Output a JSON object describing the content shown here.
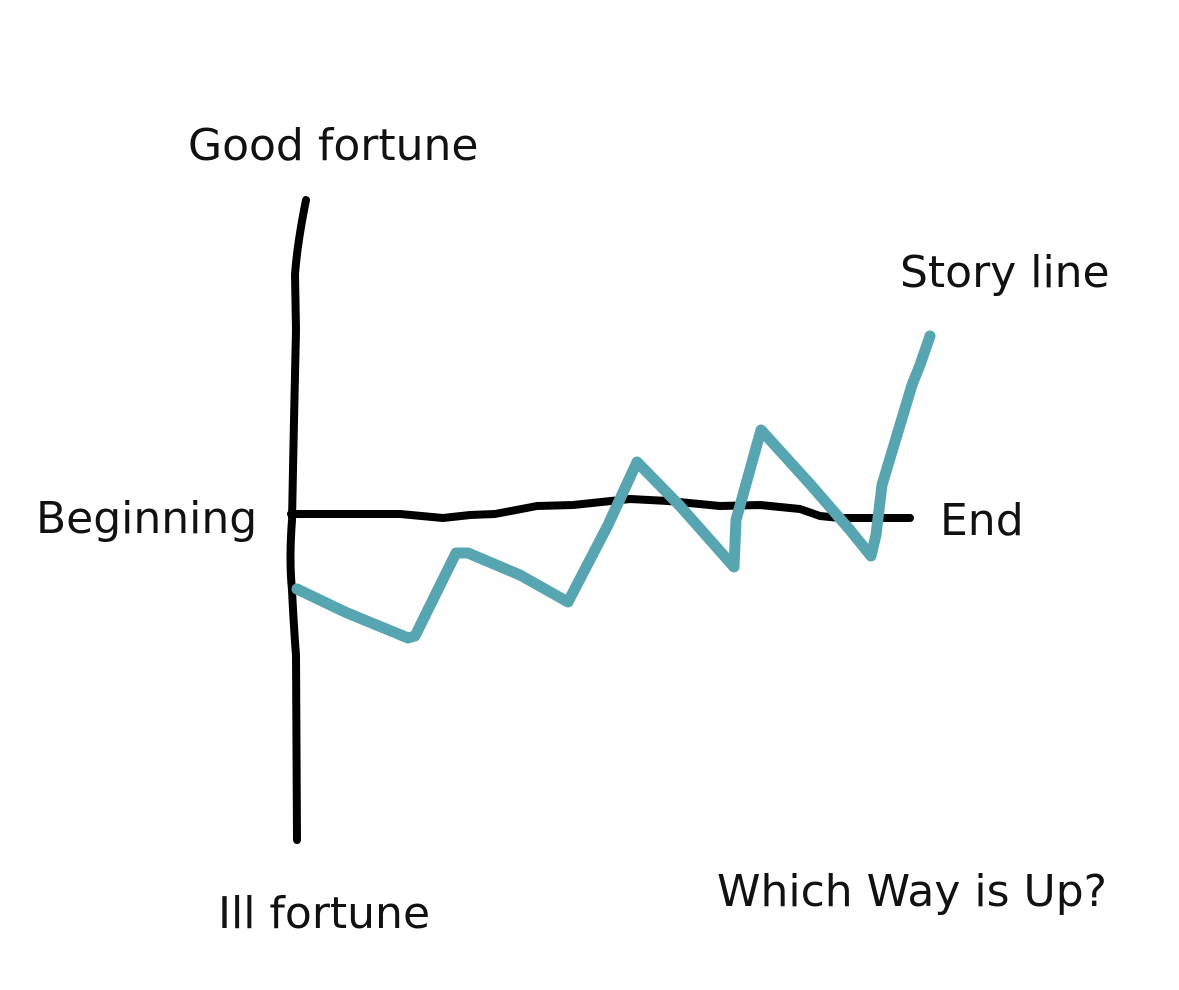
{
  "labels": {
    "good_fortune": "Good fortune",
    "ill_fortune": "Ill fortune",
    "beginning": "Beginning",
    "end": "End",
    "story_line": "Story line",
    "caption": "Which Way is Up?"
  },
  "colors": {
    "axis": "#000000",
    "story_line": "#57a5b0",
    "text": "#111111"
  }
}
